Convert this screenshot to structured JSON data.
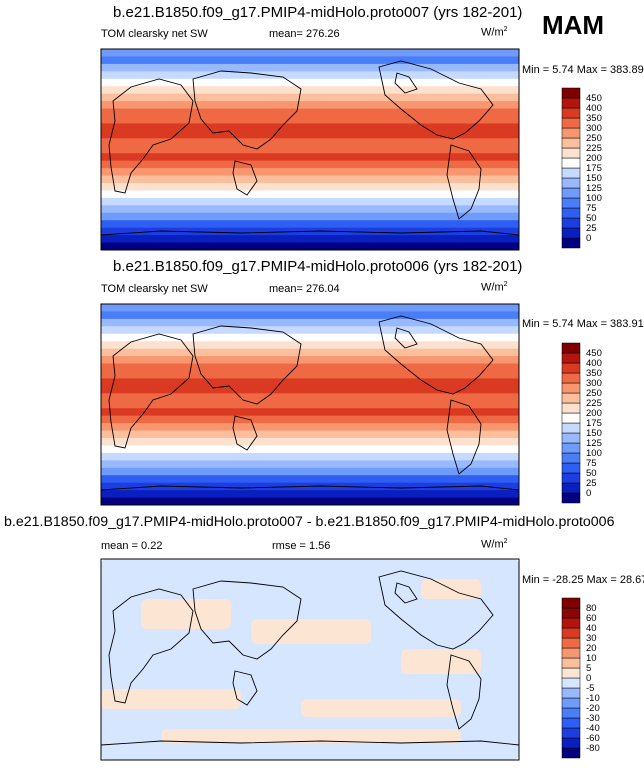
{
  "season": "MAM",
  "panels": [
    {
      "title": "b.e21.B1850.f09_g17.PMIP4-midHolo.proto007 (yrs 182-201)",
      "left": "TOM clearsky net SW",
      "mean": "mean= 276.26",
      "units": "W/m",
      "units_sup": "2",
      "minmax": "Min =   5.74 Max = 383.89"
    },
    {
      "title": "b.e21.B1850.f09_g17.PMIP4-midHolo.proto006 (yrs 182-201)",
      "left": "TOM clearsky net SW",
      "mean": "mean= 276.04",
      "units": "W/m",
      "units_sup": "2",
      "minmax": "Min =   5.74 Max = 383.91"
    },
    {
      "title": "b.e21.B1850.f09_g17.PMIP4-midHolo.proto007 - b.e21.B1850.f09_g17.PMIP4-midHolo.proto006",
      "left": "mean =   0.22",
      "mean": "rmse =   1.56",
      "units": "W/m",
      "units_sup": "2",
      "minmax": "Min = -28.25 Max =  28.67"
    }
  ],
  "chart_data": [
    {
      "type": "heatmap",
      "title": "b.e21.B1850.f09_g17.PMIP4-midHolo.proto007 (yrs 182-201)",
      "variable": "TOM clearsky net SW",
      "mean": 276.26,
      "min": 5.74,
      "max": 383.89,
      "units": "W/m2",
      "colorbar_levels": [
        "0",
        "25",
        "50",
        "75",
        "100",
        "125",
        "150",
        "175",
        "200",
        "225",
        "250",
        "300",
        "350",
        "400",
        "450"
      ],
      "colorbar_colors": [
        "#03007f",
        "#0a1fbf",
        "#1c3ee0",
        "#2f5ef2",
        "#4a7ef8",
        "#6f9bfa",
        "#98b9fc",
        "#c6daff",
        "#ffffff",
        "#fde1cf",
        "#fcbf9e",
        "#f89670",
        "#ef6a44",
        "#db3a22",
        "#b3150e",
        "#7f0000"
      ]
    },
    {
      "type": "heatmap",
      "title": "b.e21.B1850.f09_g17.PMIP4-midHolo.proto006 (yrs 182-201)",
      "variable": "TOM clearsky net SW",
      "mean": 276.04,
      "min": 5.74,
      "max": 383.91,
      "units": "W/m2",
      "colorbar_levels": [
        "0",
        "25",
        "50",
        "75",
        "100",
        "125",
        "150",
        "175",
        "200",
        "225",
        "250",
        "300",
        "350",
        "400",
        "450"
      ],
      "colorbar_colors": [
        "#03007f",
        "#0a1fbf",
        "#1c3ee0",
        "#2f5ef2",
        "#4a7ef8",
        "#6f9bfa",
        "#98b9fc",
        "#c6daff",
        "#ffffff",
        "#fde1cf",
        "#fcbf9e",
        "#f89670",
        "#ef6a44",
        "#db3a22",
        "#b3150e",
        "#7f0000"
      ]
    },
    {
      "type": "heatmap",
      "title": "b.e21.B1850.f09_g17.PMIP4-midHolo.proto007 - b.e21.B1850.f09_g17.PMIP4-midHolo.proto006",
      "mean": 0.22,
      "rmse": 1.56,
      "min": -28.25,
      "max": 28.67,
      "units": "W/m2",
      "colorbar_levels": [
        "-80",
        "-60",
        "-40",
        "-30",
        "-20",
        "-10",
        "-5",
        "0",
        "5",
        "10",
        "20",
        "30",
        "40",
        "60",
        "80"
      ],
      "colorbar_colors": [
        "#03007f",
        "#0a1fbf",
        "#1c3ee0",
        "#2f5ef2",
        "#4a7ef8",
        "#6f9bfa",
        "#98b9fc",
        "#d6e6ff",
        "#fde5d3",
        "#fcbf9e",
        "#f89670",
        "#ef6a44",
        "#db3a22",
        "#b3150e",
        "#8a0505",
        "#7f0000"
      ]
    }
  ]
}
